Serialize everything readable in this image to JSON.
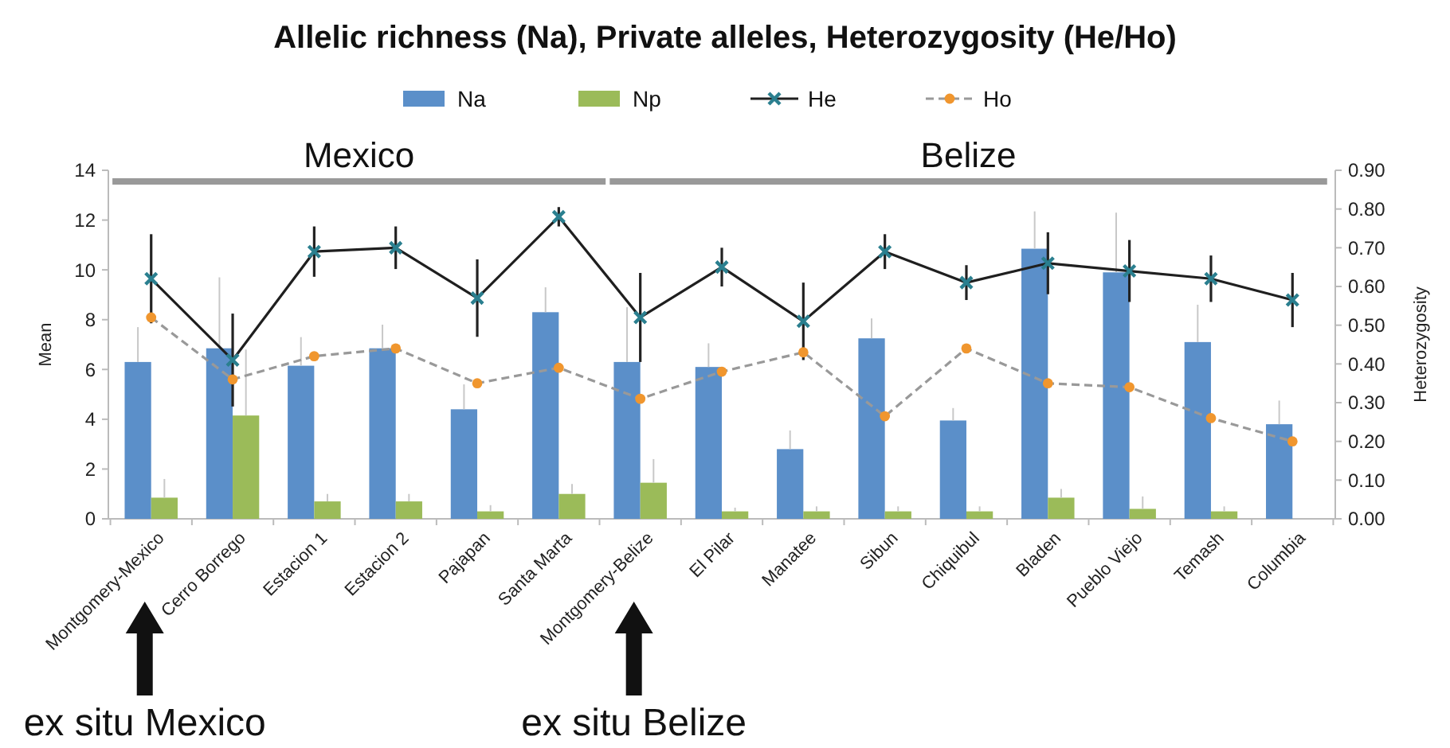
{
  "chart_data": {
    "type": "bar",
    "title": "Allelic richness (Na), Private alleles, Heterozygosity (He/Ho)",
    "ylabel": "Mean",
    "y2label": "Heterozygosity",
    "categories": [
      "Montgomery-Mexico",
      "Cerro Borrego",
      "Estacion 1",
      "Estacion 2",
      "Pajapan",
      "Santa Marta",
      "Montgomery-Belize",
      "El Pilar",
      "Manatee",
      "Sibun",
      "Chiquibul",
      "Bladen",
      "Pueblo Viejo",
      "Temash",
      "Columbia"
    ],
    "series": [
      {
        "name": "Na",
        "color": "#5b8fc9",
        "values": [
          6.3,
          6.85,
          6.15,
          6.85,
          4.4,
          8.3,
          6.3,
          6.1,
          2.8,
          7.25,
          3.95,
          10.85,
          9.9,
          7.1,
          3.8
        ],
        "errors": [
          [
            6.3,
            7.7
          ],
          [
            6.85,
            9.7
          ],
          [
            6.15,
            7.3
          ],
          [
            6.85,
            7.8
          ],
          [
            4.4,
            5.4
          ],
          [
            8.3,
            9.3
          ],
          [
            6.3,
            8.5
          ],
          [
            6.1,
            7.05
          ],
          [
            2.8,
            3.55
          ],
          [
            7.25,
            8.05
          ],
          [
            3.95,
            4.45
          ],
          [
            10.85,
            12.35
          ],
          [
            9.9,
            12.3
          ],
          [
            7.1,
            8.6
          ],
          [
            3.8,
            4.75
          ]
        ]
      },
      {
        "name": "Np",
        "color": "#9bbb59",
        "values": [
          0.85,
          4.15,
          0.7,
          0.7,
          0.3,
          1.0,
          1.45,
          0.3,
          0.3,
          0.3,
          0.3,
          0.85,
          0.4,
          0.3,
          null
        ],
        "errors": [
          [
            0.85,
            1.6
          ],
          [
            4.15,
            6.8
          ],
          [
            0.7,
            1.0
          ],
          [
            0.7,
            1.0
          ],
          [
            0.3,
            0.55
          ],
          [
            1.0,
            1.4
          ],
          [
            1.45,
            2.4
          ],
          [
            0.3,
            0.45
          ],
          [
            0.3,
            0.5
          ],
          [
            0.3,
            0.5
          ],
          [
            0.3,
            0.5
          ],
          [
            0.85,
            1.2
          ],
          [
            0.4,
            0.9
          ],
          [
            0.3,
            0.5
          ],
          null
        ]
      },
      {
        "name": "He",
        "type": "line",
        "axis": "y2",
        "color": "#1f1f1f",
        "marker": "cross",
        "line_style": "solid",
        "values": [
          0.62,
          0.41,
          0.69,
          0.7,
          0.57,
          0.78,
          0.52,
          0.65,
          0.51,
          0.69,
          0.61,
          0.66,
          0.64,
          0.62,
          0.565
        ],
        "errors": [
          0.115,
          0.12,
          0.065,
          0.055,
          0.1,
          0.025,
          0.115,
          0.05,
          0.1,
          0.045,
          0.045,
          0.08,
          0.08,
          0.06,
          0.07
        ]
      },
      {
        "name": "Ho",
        "type": "line",
        "axis": "y2",
        "color": "#f0962e",
        "marker": "circle",
        "line_style": "dashed",
        "values": [
          0.52,
          0.36,
          0.42,
          0.44,
          0.35,
          0.39,
          0.31,
          0.38,
          0.43,
          0.265,
          0.44,
          0.35,
          0.34,
          0.26,
          0.2
        ]
      }
    ],
    "ylim": [
      0,
      14
    ],
    "yticks": [
      0,
      2,
      4,
      6,
      8,
      10,
      12,
      14
    ],
    "y2lim": [
      0,
      0.9
    ],
    "y2ticks": [
      {
        "value": 0,
        "label": "0.00"
      },
      {
        "value": 0.1,
        "label": "0.10"
      },
      {
        "value": 0.2,
        "label": "0.20"
      },
      {
        "value": 0.3,
        "label": "0.30"
      },
      {
        "value": 0.4,
        "label": "0.40"
      },
      {
        "value": 0.5,
        "label": "0.50"
      },
      {
        "value": 0.6,
        "label": "0.60"
      },
      {
        "value": 0.7,
        "label": "0.70"
      },
      {
        "value": 0.8,
        "label": "0.80"
      },
      {
        "value": 0.9,
        "label": "0.90"
      }
    ],
    "annotations": [
      "Mexico",
      "Belize",
      "ex situ Mexico",
      "ex situ Belize"
    ],
    "grid": false,
    "legend": "top"
  }
}
